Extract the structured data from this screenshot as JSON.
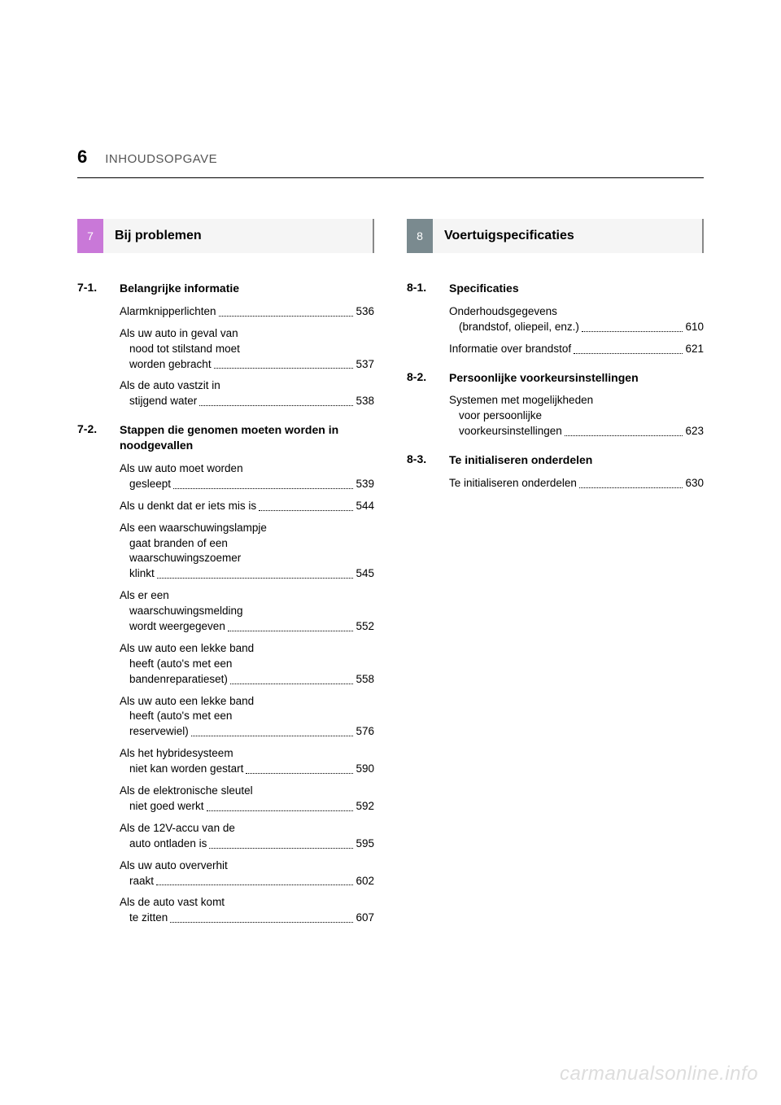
{
  "page_number": "6",
  "header_title": "INHOUDSOPGAVE",
  "watermark": "carmanualsonline.info",
  "colors": {
    "tab_purple": "#c978d8",
    "tab_gray": "#7a8a8f",
    "header_bg": "#f5f5f5",
    "header_border": "#888888",
    "text": "#000000",
    "subtext": "#555555",
    "watermark": "#dddddd",
    "background": "#ffffff"
  },
  "typography": {
    "page_number_size": 22,
    "header_title_size": 15,
    "section_title_size": 16,
    "subsection_size": 14,
    "entry_size": 13.5
  },
  "left": {
    "tab": "7",
    "title": "Bij problemen",
    "subsections": [
      {
        "num": "7-1.",
        "title": "Belangrijke informatie",
        "entries": [
          {
            "lines": [
              "Alarmknipperlichten"
            ],
            "page": "536"
          },
          {
            "lines": [
              "Als uw auto in geval van",
              "nood tot stilstand moet",
              "worden gebracht"
            ],
            "page": "537"
          },
          {
            "lines": [
              "Als de auto vastzit in",
              "stijgend water"
            ],
            "page": "538"
          }
        ]
      },
      {
        "num": "7-2.",
        "title": "Stappen die genomen moeten worden in noodgevallen",
        "entries": [
          {
            "lines": [
              "Als uw auto moet worden",
              "gesleept"
            ],
            "page": "539"
          },
          {
            "lines": [
              "Als u denkt dat er iets mis is"
            ],
            "page": "544"
          },
          {
            "lines": [
              "Als een waarschuwingslampje",
              "gaat branden of een",
              "waarschuwingszoemer",
              "klinkt"
            ],
            "page": "545"
          },
          {
            "lines": [
              "Als er een",
              "waarschuwingsmelding",
              "wordt weergegeven"
            ],
            "page": "552"
          },
          {
            "lines": [
              "Als uw auto een lekke band",
              "heeft (auto's met een",
              "bandenreparatieset)"
            ],
            "page": "558"
          },
          {
            "lines": [
              "Als uw auto een lekke band",
              "heeft (auto's met een",
              "reservewiel)"
            ],
            "page": "576"
          },
          {
            "lines": [
              "Als het hybridesysteem",
              "niet kan worden gestart"
            ],
            "page": "590"
          },
          {
            "lines": [
              "Als de elektronische sleutel",
              "niet goed werkt"
            ],
            "page": "592"
          },
          {
            "lines": [
              "Als de 12V-accu van de",
              "auto ontladen is"
            ],
            "page": "595"
          },
          {
            "lines": [
              "Als uw auto oververhit",
              "raakt"
            ],
            "page": "602"
          },
          {
            "lines": [
              "Als de auto vast komt",
              "te zitten"
            ],
            "page": "607"
          }
        ]
      }
    ]
  },
  "right": {
    "tab": "8",
    "title": "Voertuigspecificaties",
    "subsections": [
      {
        "num": "8-1.",
        "title": "Specificaties",
        "entries": [
          {
            "lines": [
              "Onderhoudsgegevens",
              "(brandstof, oliepeil, enz.)"
            ],
            "page": "610"
          },
          {
            "lines": [
              "Informatie over brandstof"
            ],
            "page": "621"
          }
        ]
      },
      {
        "num": "8-2.",
        "title": "Persoonlijke voorkeursinstellingen",
        "entries": [
          {
            "lines": [
              "Systemen met mogelijkheden",
              "voor persoonlijke",
              "voorkeursinstellingen"
            ],
            "page": "623"
          }
        ]
      },
      {
        "num": "8-3.",
        "title": "Te initialiseren onderdelen",
        "entries": [
          {
            "lines": [
              "Te initialiseren onderdelen"
            ],
            "page": "630"
          }
        ]
      }
    ]
  }
}
